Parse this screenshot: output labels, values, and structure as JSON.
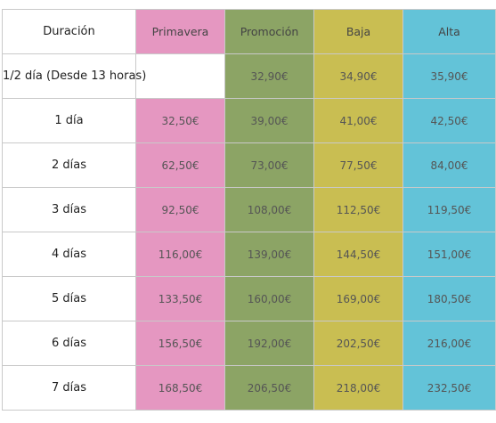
{
  "table": {
    "headers": [
      "Duración",
      "Primavera",
      "Promoción",
      "Baja",
      "Alta"
    ],
    "colors": {
      "primavera": "#e597c1",
      "promocion": "#8ca465",
      "baja": "#c9be52",
      "alta": "#63c3d8"
    },
    "rows": [
      {
        "duration": "1/2 día (Desde 13 horas)",
        "primavera": "",
        "promocion": "32,90€",
        "baja": "34,90€",
        "alta": "35,90€"
      },
      {
        "duration": "1 día",
        "primavera": "32,50€",
        "promocion": "39,00€",
        "baja": "41,00€",
        "alta": "42,50€"
      },
      {
        "duration": "2 días",
        "primavera": "62,50€",
        "promocion": "73,00€",
        "baja": "77,50€",
        "alta": "84,00€"
      },
      {
        "duration": "3 días",
        "primavera": "92,50€",
        "promocion": "108,00€",
        "baja": "112,50€",
        "alta": "119,50€"
      },
      {
        "duration": "4 días",
        "primavera": "116,00€",
        "promocion": "139,00€",
        "baja": "144,50€",
        "alta": "151,00€"
      },
      {
        "duration": "5 días",
        "primavera": "133,50€",
        "promocion": "160,00€",
        "baja": "169,00€",
        "alta": "180,50€"
      },
      {
        "duration": "6 días",
        "primavera": "156,50€",
        "promocion": "192,00€",
        "baja": "202,50€",
        "alta": "216,00€"
      },
      {
        "duration": "7 días",
        "primavera": "168,50€",
        "promocion": "206,50€",
        "baja": "218,00€",
        "alta": "232,50€"
      }
    ]
  }
}
